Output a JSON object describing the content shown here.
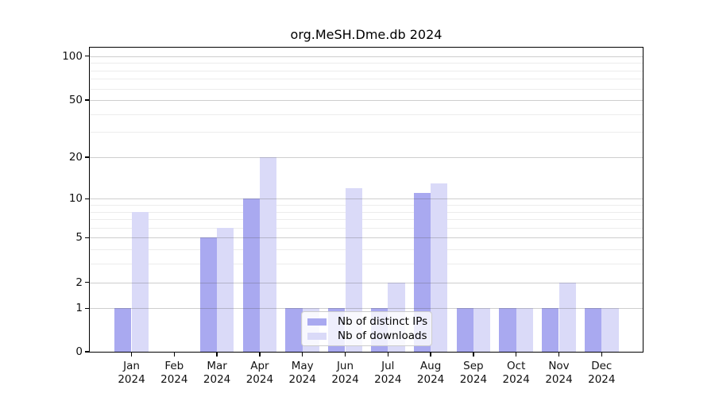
{
  "figure": {
    "background": "#ffffff"
  },
  "chart_data": {
    "type": "bar",
    "title": "org.MeSH.Dme.db 2024",
    "categories": [
      "Jan",
      "Feb",
      "Mar",
      "Apr",
      "May",
      "Jun",
      "Jul",
      "Aug",
      "Sep",
      "Oct",
      "Nov",
      "Dec"
    ],
    "category_year": "2024",
    "series": [
      {
        "name": "Nb of distinct IPs",
        "color": "#a9a9f0",
        "values": [
          1,
          0,
          5,
          10,
          1,
          1,
          1,
          11,
          1,
          1,
          1,
          1
        ]
      },
      {
        "name": "Nb of downloads",
        "color": "#dadaf8",
        "values": [
          8,
          0,
          6,
          20,
          1,
          12,
          2,
          13,
          1,
          1,
          2,
          1
        ]
      }
    ],
    "xlabel": "",
    "ylabel": "",
    "y_scale": "log1p",
    "y_ticks": [
      0,
      1,
      2,
      5,
      10,
      20,
      50,
      100
    ],
    "y_minor_ticks": [
      3,
      4,
      6,
      7,
      8,
      9,
      30,
      40,
      60,
      70,
      80,
      90
    ],
    "ylim": [
      0,
      117
    ],
    "grid": true,
    "legend_position": "lower center"
  },
  "colors": {
    "axis": "#000000",
    "major_grid": "#c9c9c9",
    "minor_grid": "#ededed",
    "legend_border": "#cccccc",
    "legend_background": "rgba(255,255,255,0.8)"
  }
}
